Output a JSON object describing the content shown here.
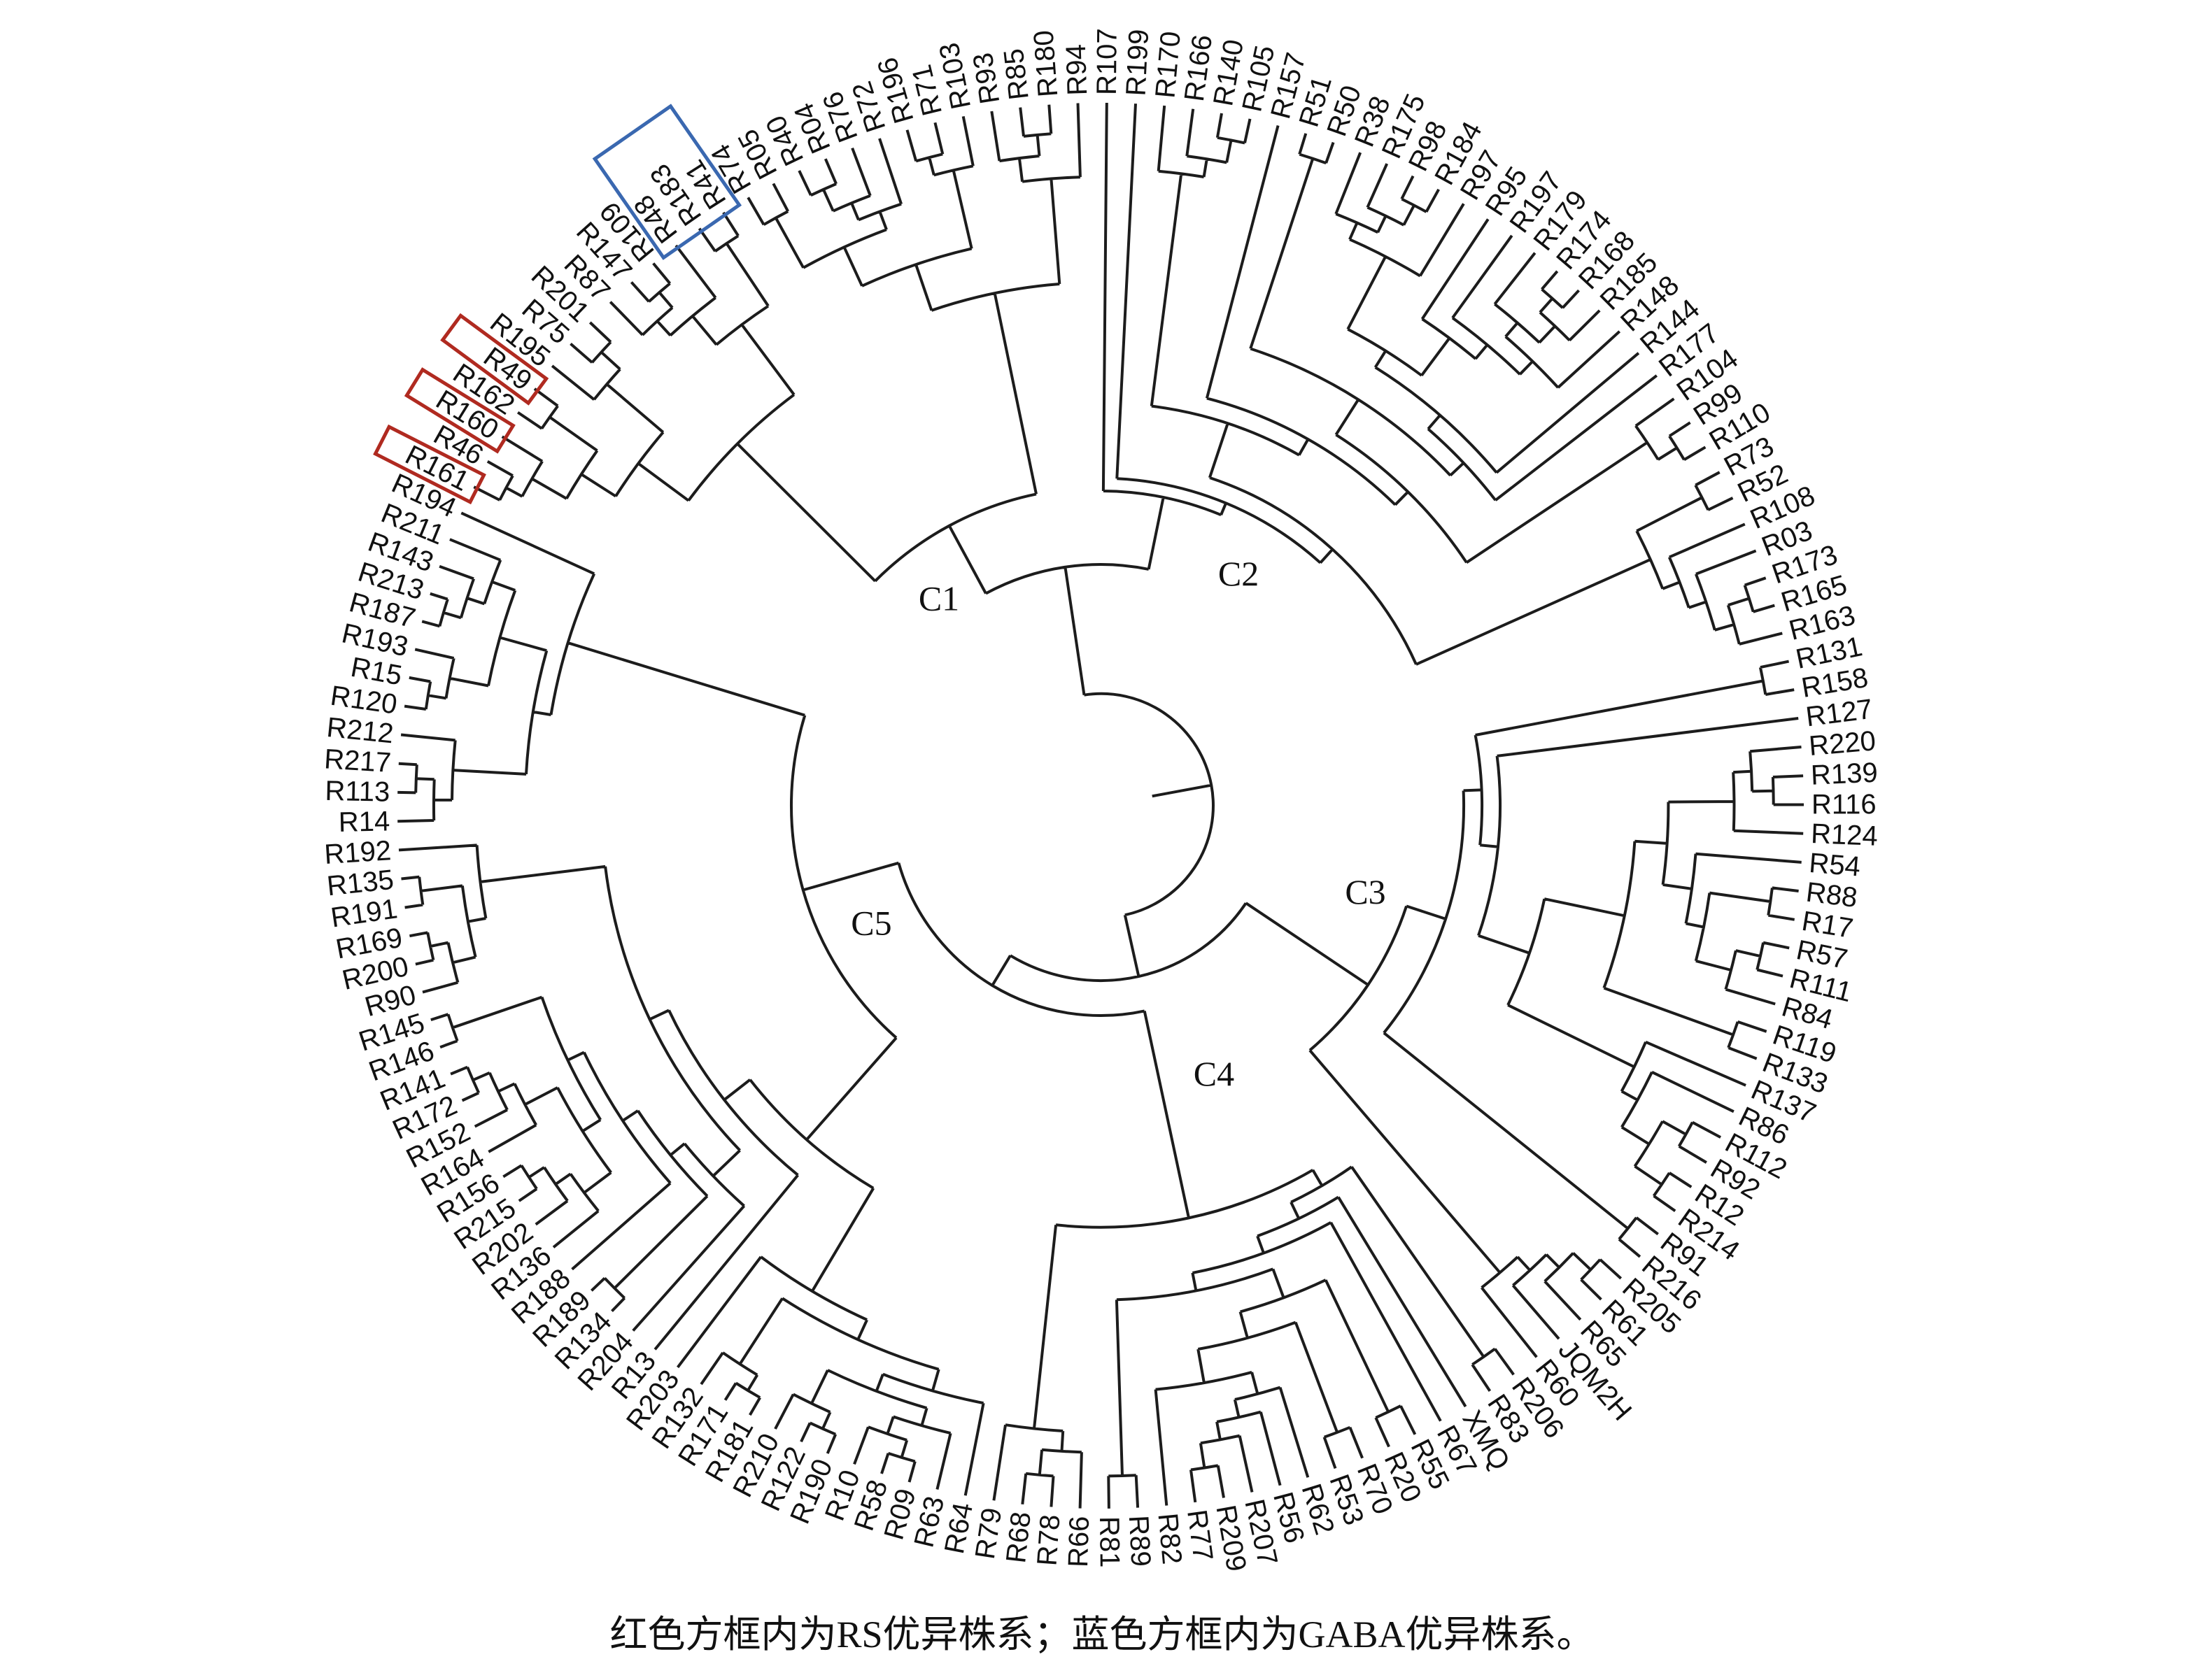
{
  "figure": {
    "caption": "红色方框内为RS优异株系；蓝色方框内为GABA优异株系。"
  },
  "tree": {
    "type": "circular-dendrogram",
    "line_color": "#1c1c1c",
    "label_color": "#111111",
    "clusters": [
      {
        "name": "C2",
        "label": "C2",
        "leaves": [
          "R107",
          "R199",
          "R170",
          "R166",
          "R140",
          "R105",
          "R157",
          "R51",
          "R50",
          "R38",
          "R175",
          "R98",
          "R184",
          "R97",
          "R95",
          "R197",
          "R179",
          "R174",
          "R168",
          "R185",
          "R148",
          "R144",
          "R177",
          "R104",
          "R99",
          "R110",
          "R73",
          "R52",
          "R108",
          "R03",
          "R173",
          "R165",
          "R163"
        ]
      },
      {
        "name": "C3",
        "label": "C3",
        "leaves": [
          "R131",
          "R158",
          "R127",
          "R220",
          "R139",
          "R116",
          "R124",
          "R54",
          "R88",
          "R17",
          "R57",
          "R111",
          "R84",
          "R119",
          "R133",
          "R137",
          "R86",
          "R112",
          "R92",
          "R12",
          "R214",
          "R91",
          "R216",
          "R205",
          "R61",
          "R65",
          "JQM2H",
          "R60"
        ]
      },
      {
        "name": "C4",
        "label": "C4",
        "leaves": [
          "R206",
          "R83",
          "XMQ",
          "R67",
          "R55",
          "R20",
          "R70",
          "R53",
          "R62",
          "R56",
          "R207",
          "R209",
          "R77",
          "R82",
          "R89",
          "R81",
          "R66",
          "R78",
          "R68",
          "R79"
        ]
      },
      {
        "name": "C5",
        "label": "C5",
        "leaves": [
          "R64",
          "R63",
          "R09",
          "R58",
          "R10",
          "R190",
          "R122",
          "R210",
          "R181",
          "R171",
          "R132",
          "R203",
          "R13",
          "R204",
          "R134",
          "R189",
          "R188",
          "R136",
          "R202",
          "R215",
          "R156",
          "R164",
          "R152",
          "R172",
          "R141",
          "R146",
          "R145",
          "R90",
          "R200",
          "R169",
          "R191",
          "R135",
          "R192",
          "R14",
          "R113",
          "R217",
          "R212",
          "R120",
          "R15",
          "R193",
          "R187",
          "R213",
          "R143",
          "R211",
          "R194"
        ]
      },
      {
        "name": "C1",
        "label": "C1",
        "leaves": [
          "R161",
          "R46",
          "R160",
          "R162",
          "R49",
          "R195",
          "R75",
          "R201",
          "R87",
          "R147",
          "R109",
          "R48",
          "R183",
          "R41",
          "R74",
          "R05",
          "R40",
          "R04",
          "R76",
          "R72",
          "R196",
          "R71",
          "R103",
          "R93",
          "R85",
          "R180",
          "R94"
        ]
      }
    ],
    "highlight_boxes": [
      {
        "type": "RS",
        "color": "#b02a20",
        "leaves": [
          "R161"
        ]
      },
      {
        "type": "RS",
        "color": "#b02a20",
        "leaves": [
          "R160"
        ]
      },
      {
        "type": "RS",
        "color": "#b02a20",
        "leaves": [
          "R49"
        ]
      },
      {
        "type": "GABA",
        "color": "#3a68b0",
        "leaves": [
          "R48",
          "R183",
          "R41"
        ]
      }
    ]
  }
}
